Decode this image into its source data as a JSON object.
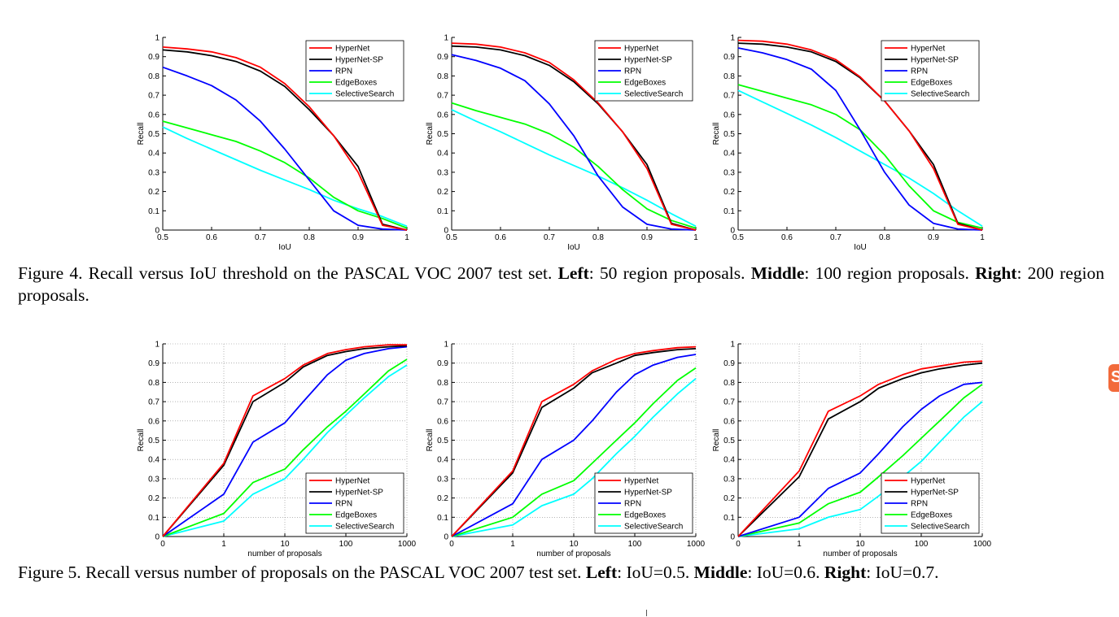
{
  "colors": {
    "HyperNet": "#ff0000",
    "HyperNet-SP": "#000000",
    "RPN": "#0000ff",
    "EdgeBoxes": "#00ff00",
    "SelectiveSearch": "#00ffff"
  },
  "captions": {
    "fig4": {
      "lead": "Figure 4. Recall versus IoU threshold on the PASCAL VOC 2007 test set. ",
      "b1": "Left",
      "t1": ": 50 region proposals. ",
      "b2": "Middle",
      "t2": ": 100 region proposals. ",
      "b3": "Right",
      "t3": ": 200 region proposals."
    },
    "fig5": {
      "lead": "Figure 5. Recall versus number of proposals on the PASCAL VOC 2007 test set. ",
      "b1": "Left",
      "t1": ": IoU=0.5. ",
      "b2": "Middle",
      "t2": ": IoU=0.6. ",
      "b3": "Right",
      "t3": ": IoU=0.7."
    }
  },
  "side_icon": {
    "glyph": "S",
    "name": "orange-sidebar-icon"
  },
  "chart_data": [
    {
      "type": "line",
      "xlabel": "IoU",
      "ylabel": "Recall",
      "xlim": [
        0.5,
        1
      ],
      "ylim": [
        0,
        1
      ],
      "xticks": [
        "0.5",
        "0.6",
        "0.7",
        "0.8",
        "0.9",
        "1"
      ],
      "yticks": [
        "0",
        "0.1",
        "0.2",
        "0.3",
        "0.4",
        "0.5",
        "0.6",
        "0.7",
        "0.8",
        "0.9",
        "1"
      ],
      "grid": false,
      "legend": "top-right",
      "x": [
        0.5,
        0.55,
        0.6,
        0.65,
        0.7,
        0.75,
        0.8,
        0.85,
        0.9,
        0.95,
        1.0
      ],
      "series": [
        {
          "name": "HyperNet",
          "values": [
            0.95,
            0.94,
            0.925,
            0.895,
            0.845,
            0.76,
            0.64,
            0.49,
            0.3,
            0.025,
            0.0
          ]
        },
        {
          "name": "HyperNet-SP",
          "values": [
            0.935,
            0.925,
            0.905,
            0.875,
            0.825,
            0.745,
            0.625,
            0.49,
            0.33,
            0.03,
            0.0
          ]
        },
        {
          "name": "RPN",
          "values": [
            0.845,
            0.8,
            0.75,
            0.675,
            0.565,
            0.42,
            0.26,
            0.1,
            0.025,
            0.005,
            0.0
          ]
        },
        {
          "name": "EdgeBoxes",
          "values": [
            0.565,
            0.53,
            0.495,
            0.46,
            0.41,
            0.35,
            0.27,
            0.17,
            0.1,
            0.06,
            0.01
          ]
        },
        {
          "name": "SelectiveSearch",
          "values": [
            0.535,
            0.475,
            0.42,
            0.365,
            0.31,
            0.26,
            0.21,
            0.155,
            0.11,
            0.07,
            0.02
          ]
        }
      ]
    },
    {
      "type": "line",
      "xlabel": "IoU",
      "ylabel": "Recall",
      "xlim": [
        0.5,
        1
      ],
      "ylim": [
        0,
        1
      ],
      "xticks": [
        "0.5",
        "0.6",
        "0.7",
        "0.8",
        "0.9",
        "1"
      ],
      "yticks": [
        "0",
        "0.1",
        "0.2",
        "0.3",
        "0.4",
        "0.5",
        "0.6",
        "0.7",
        "0.8",
        "0.9",
        "1"
      ],
      "grid": false,
      "legend": "top-right",
      "x": [
        0.5,
        0.55,
        0.6,
        0.65,
        0.7,
        0.75,
        0.8,
        0.85,
        0.9,
        0.95,
        1.0
      ],
      "series": [
        {
          "name": "HyperNet",
          "values": [
            0.97,
            0.965,
            0.95,
            0.92,
            0.87,
            0.78,
            0.66,
            0.51,
            0.32,
            0.03,
            0.0
          ]
        },
        {
          "name": "HyperNet-SP",
          "values": [
            0.955,
            0.95,
            0.935,
            0.905,
            0.855,
            0.77,
            0.655,
            0.51,
            0.34,
            0.035,
            0.0
          ]
        },
        {
          "name": "RPN",
          "values": [
            0.91,
            0.88,
            0.84,
            0.775,
            0.655,
            0.49,
            0.28,
            0.12,
            0.03,
            0.005,
            0.0
          ]
        },
        {
          "name": "EdgeBoxes",
          "values": [
            0.66,
            0.62,
            0.585,
            0.55,
            0.5,
            0.43,
            0.33,
            0.21,
            0.11,
            0.05,
            0.01
          ]
        },
        {
          "name": "SelectiveSearch",
          "values": [
            0.625,
            0.565,
            0.51,
            0.45,
            0.39,
            0.335,
            0.28,
            0.22,
            0.155,
            0.085,
            0.02
          ]
        }
      ]
    },
    {
      "type": "line",
      "xlabel": "IoU",
      "ylabel": "Recall",
      "xlim": [
        0.5,
        1
      ],
      "ylim": [
        0,
        1
      ],
      "xticks": [
        "0.5",
        "0.6",
        "0.7",
        "0.8",
        "0.9",
        "1"
      ],
      "yticks": [
        "0",
        "0.1",
        "0.2",
        "0.3",
        "0.4",
        "0.5",
        "0.6",
        "0.7",
        "0.8",
        "0.9",
        "1"
      ],
      "grid": false,
      "legend": "top-right",
      "x": [
        0.5,
        0.55,
        0.6,
        0.65,
        0.7,
        0.75,
        0.8,
        0.85,
        0.9,
        0.95,
        1.0
      ],
      "series": [
        {
          "name": "HyperNet",
          "values": [
            0.985,
            0.98,
            0.965,
            0.935,
            0.885,
            0.795,
            0.67,
            0.515,
            0.32,
            0.03,
            0.0
          ]
        },
        {
          "name": "HyperNet-SP",
          "values": [
            0.97,
            0.965,
            0.95,
            0.925,
            0.875,
            0.79,
            0.67,
            0.515,
            0.34,
            0.035,
            0.0
          ]
        },
        {
          "name": "RPN",
          "values": [
            0.945,
            0.92,
            0.885,
            0.835,
            0.725,
            0.52,
            0.3,
            0.13,
            0.035,
            0.005,
            0.0
          ]
        },
        {
          "name": "EdgeBoxes",
          "values": [
            0.755,
            0.72,
            0.685,
            0.65,
            0.6,
            0.52,
            0.39,
            0.23,
            0.1,
            0.04,
            0.01
          ]
        },
        {
          "name": "SelectiveSearch",
          "values": [
            0.725,
            0.665,
            0.605,
            0.545,
            0.48,
            0.41,
            0.34,
            0.27,
            0.19,
            0.1,
            0.02
          ]
        }
      ]
    },
    {
      "type": "line",
      "xlabel": "number of proposals",
      "ylabel": "Recall",
      "xscale": "log",
      "xlim": [
        0,
        1000
      ],
      "ylim": [
        0,
        1
      ],
      "xticks": [
        "0",
        "1",
        "10",
        "100",
        "1000"
      ],
      "yticks": [
        "0",
        "0.1",
        "0.2",
        "0.3",
        "0.4",
        "0.5",
        "0.6",
        "0.7",
        "0.8",
        "0.9",
        "1"
      ],
      "grid": true,
      "legend": "bottom-right",
      "x": [
        0,
        1,
        3,
        10,
        20,
        50,
        100,
        200,
        500,
        1000
      ],
      "series": [
        {
          "name": "HyperNet",
          "values": [
            0.0,
            0.38,
            0.73,
            0.82,
            0.89,
            0.95,
            0.97,
            0.985,
            0.995,
            0.995
          ]
        },
        {
          "name": "HyperNet-SP",
          "values": [
            0.0,
            0.37,
            0.7,
            0.8,
            0.88,
            0.94,
            0.96,
            0.975,
            0.985,
            0.99
          ]
        },
        {
          "name": "RPN",
          "values": [
            0.0,
            0.22,
            0.49,
            0.59,
            0.7,
            0.84,
            0.915,
            0.95,
            0.975,
            0.985
          ]
        },
        {
          "name": "EdgeBoxes",
          "values": [
            0.0,
            0.12,
            0.28,
            0.35,
            0.45,
            0.57,
            0.65,
            0.74,
            0.86,
            0.92
          ]
        },
        {
          "name": "SelectiveSearch",
          "values": [
            0.0,
            0.08,
            0.22,
            0.3,
            0.4,
            0.54,
            0.63,
            0.72,
            0.83,
            0.89
          ]
        }
      ]
    },
    {
      "type": "line",
      "xlabel": "number of proposals",
      "ylabel": "Recall",
      "xscale": "log",
      "xlim": [
        0,
        1000
      ],
      "ylim": [
        0,
        1
      ],
      "xticks": [
        "0",
        "1",
        "10",
        "100",
        "1000"
      ],
      "yticks": [
        "0",
        "0.1",
        "0.2",
        "0.3",
        "0.4",
        "0.5",
        "0.6",
        "0.7",
        "0.8",
        "0.9",
        "1"
      ],
      "grid": true,
      "legend": "bottom-right",
      "x": [
        0,
        1,
        3,
        10,
        20,
        50,
        100,
        200,
        500,
        1000
      ],
      "series": [
        {
          "name": "HyperNet",
          "values": [
            0.0,
            0.34,
            0.7,
            0.79,
            0.86,
            0.92,
            0.95,
            0.965,
            0.98,
            0.985
          ]
        },
        {
          "name": "HyperNet-SP",
          "values": [
            0.0,
            0.33,
            0.67,
            0.77,
            0.85,
            0.9,
            0.94,
            0.955,
            0.97,
            0.975
          ]
        },
        {
          "name": "RPN",
          "values": [
            0.0,
            0.17,
            0.4,
            0.5,
            0.6,
            0.75,
            0.84,
            0.89,
            0.93,
            0.945
          ]
        },
        {
          "name": "EdgeBoxes",
          "values": [
            0.0,
            0.1,
            0.22,
            0.29,
            0.38,
            0.5,
            0.59,
            0.69,
            0.81,
            0.875
          ]
        },
        {
          "name": "SelectiveSearch",
          "values": [
            0.0,
            0.06,
            0.16,
            0.22,
            0.3,
            0.43,
            0.52,
            0.62,
            0.74,
            0.82
          ]
        }
      ]
    },
    {
      "type": "line",
      "xlabel": "number of proposals",
      "ylabel": "Recall",
      "xscale": "log",
      "xlim": [
        0,
        1000
      ],
      "ylim": [
        0,
        1
      ],
      "xticks": [
        "0",
        "1",
        "10",
        "100",
        "1000"
      ],
      "yticks": [
        "0",
        "0.1",
        "0.2",
        "0.3",
        "0.4",
        "0.5",
        "0.6",
        "0.7",
        "0.8",
        "0.9",
        "1"
      ],
      "grid": true,
      "legend": "bottom-right",
      "x": [
        0,
        1,
        3,
        10,
        20,
        50,
        100,
        200,
        500,
        1000
      ],
      "series": [
        {
          "name": "HyperNet",
          "values": [
            0.0,
            0.34,
            0.65,
            0.73,
            0.79,
            0.84,
            0.87,
            0.885,
            0.905,
            0.91
          ]
        },
        {
          "name": "HyperNet-SP",
          "values": [
            0.0,
            0.31,
            0.61,
            0.7,
            0.77,
            0.82,
            0.85,
            0.87,
            0.89,
            0.9
          ]
        },
        {
          "name": "RPN",
          "values": [
            0.0,
            0.1,
            0.25,
            0.33,
            0.43,
            0.57,
            0.66,
            0.73,
            0.79,
            0.8
          ]
        },
        {
          "name": "EdgeBoxes",
          "values": [
            0.0,
            0.07,
            0.17,
            0.23,
            0.31,
            0.42,
            0.51,
            0.6,
            0.72,
            0.79
          ]
        },
        {
          "name": "SelectiveSearch",
          "values": [
            0.0,
            0.04,
            0.1,
            0.14,
            0.21,
            0.31,
            0.39,
            0.49,
            0.62,
            0.7
          ]
        }
      ]
    }
  ]
}
